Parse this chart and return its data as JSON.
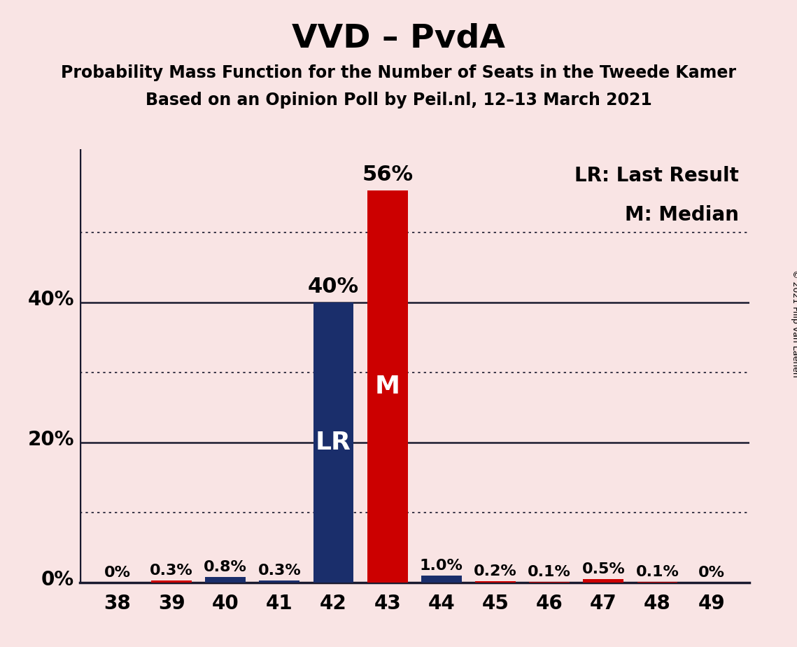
{
  "title": "VVD – PvdA",
  "subtitle1": "Probability Mass Function for the Number of Seats in the Tweede Kamer",
  "subtitle2": "Based on an Opinion Poll by Peil.nl, 12–13 March 2021",
  "copyright": "© 2021 Filip van Laenen",
  "seats": [
    38,
    39,
    40,
    41,
    42,
    43,
    44,
    45,
    46,
    47,
    48,
    49
  ],
  "values": [
    0.0,
    0.3,
    0.8,
    0.3,
    40.0,
    56.0,
    1.0,
    0.2,
    0.1,
    0.5,
    0.1,
    0.0
  ],
  "labels": [
    "0%",
    "0.3%",
    "0.8%",
    "0.3%",
    "40%",
    "56%",
    "1.0%",
    "0.2%",
    "0.1%",
    "0.5%",
    "0.1%",
    "0%"
  ],
  "bar_colors": [
    "#cc0000",
    "#cc0000",
    "#1a2e6b",
    "#1a2e6b",
    "#1a2e6b",
    "#cc0000",
    "#1a2e6b",
    "#cc0000",
    "#cc0000",
    "#cc0000",
    "#cc0000",
    "#cc0000"
  ],
  "lr_seat": 42,
  "median_seat": 43,
  "lr_label": "LR",
  "median_label": "M",
  "legend_lr": "LR: Last Result",
  "legend_m": "M: Median",
  "background_color": "#f9e4e4",
  "ylim": [
    0,
    62
  ],
  "solid_yticks": [
    0,
    20,
    40
  ],
  "dotted_yticks": [
    10,
    30,
    50
  ],
  "bar_width": 0.75,
  "title_fontsize": 34,
  "subtitle_fontsize": 17,
  "label_fontsize": 16,
  "tick_fontsize": 20,
  "legend_fontsize": 20,
  "lr_m_fontsize": 26,
  "large_label_fontsize": 22,
  "copyright_fontsize": 9
}
